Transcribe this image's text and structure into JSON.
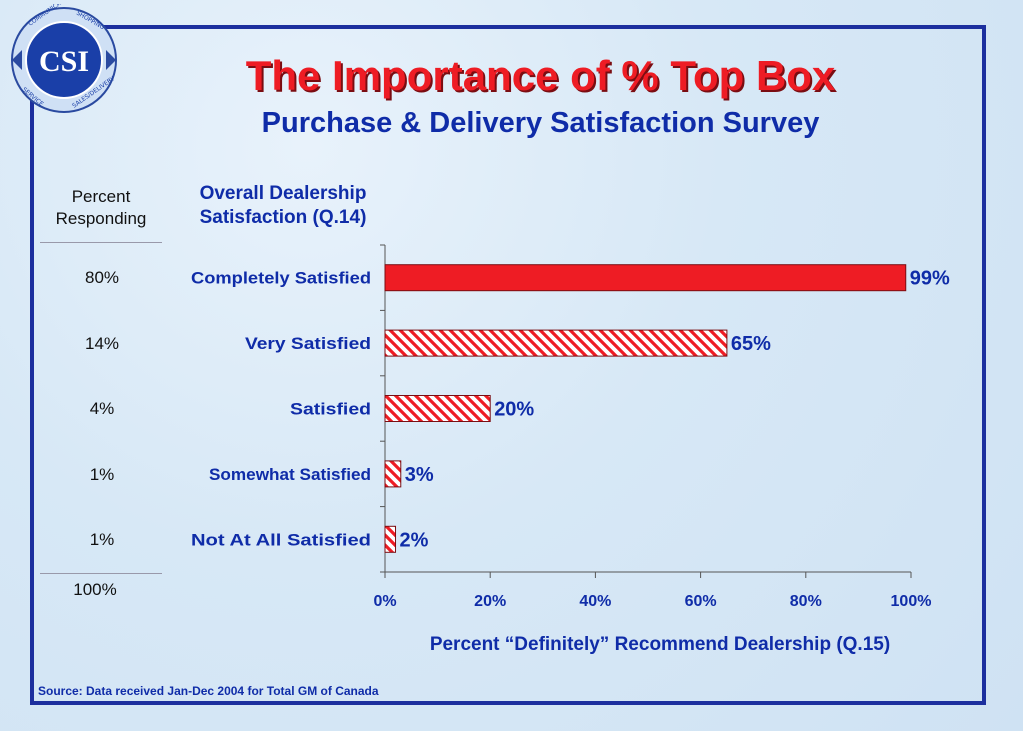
{
  "title": "The Importance of % Top Box",
  "subtitle": "Purchase & Delivery Satisfaction Survey",
  "logo": {
    "center_text": "CSI",
    "ring_words": [
      "COMMUNICATION",
      "SHOPPING",
      "SERVICE",
      "SALES/DELIVERY"
    ]
  },
  "left_column": {
    "header_line1": "Percent",
    "header_line2": "Responding",
    "values": [
      "80%",
      "14%",
      "4%",
      "1%",
      "1%"
    ],
    "total": "100%"
  },
  "chart_label_line1": "Overall Dealership",
  "chart_label_line2": "Satisfaction (Q.14)",
  "source_text": "Source:  Data received Jan-Dec 2004 for Total GM of Canada",
  "colors": {
    "accent_red": "#ee1c24",
    "navy": "#0f2ca8",
    "frame": "#1c2f9e"
  },
  "chart_data": {
    "type": "bar",
    "orientation": "horizontal",
    "categories": [
      "Completely Satisfied",
      "Very Satisfied",
      "Satisfied",
      "Somewhat Satisfied",
      "Not At All Satisfied"
    ],
    "values": [
      99,
      65,
      20,
      3,
      2
    ],
    "data_labels": [
      "99%",
      "65%",
      "20%",
      "3%",
      "2%"
    ],
    "xlabel": "Percent “Definitely” Recommend Dealership (Q.15)",
    "xlim": [
      0,
      100
    ],
    "xticks": [
      0,
      20,
      40,
      60,
      80,
      100
    ],
    "xtick_labels": [
      "0%",
      "20%",
      "40%",
      "60%",
      "80%",
      "100%"
    ],
    "fill_styles": [
      "solid",
      "hatched",
      "hatched",
      "hatched",
      "hatched"
    ],
    "grid": false,
    "legend": "none"
  }
}
